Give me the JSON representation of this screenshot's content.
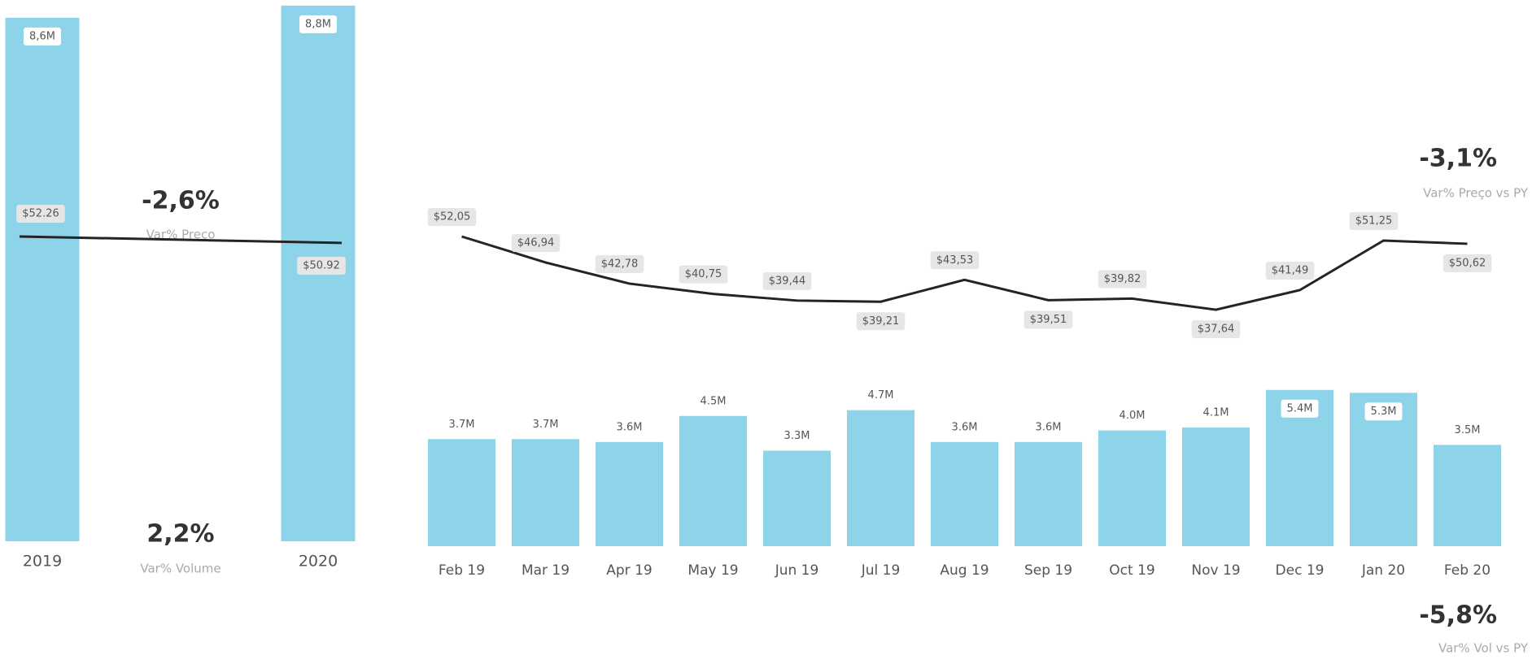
{
  "chart_data": [
    {
      "type": "combo",
      "categories": [
        "2019",
        "2020"
      ],
      "bars": {
        "color": "#8dd3ea",
        "values": [
          8.6,
          8.8
        ],
        "value_labels": [
          "8,6M",
          "8,8M"
        ]
      },
      "line": {
        "color": "#252423",
        "values": [
          52.26,
          50.92
        ],
        "value_labels": [
          "$52.26",
          "$50.92"
        ]
      },
      "annotations": [
        {
          "value": "-2,6%",
          "label": "Var% Preço"
        },
        {
          "value": "2,2%",
          "label": "Var% Volume"
        }
      ]
    },
    {
      "type": "combo",
      "categories": [
        "Feb 19",
        "Mar 19",
        "Apr 19",
        "May 19",
        "Jun 19",
        "Jul 19",
        "Aug 19",
        "Sep 19",
        "Oct 19",
        "Nov 19",
        "Dec 19",
        "Jan 20",
        "Feb 20"
      ],
      "bars": {
        "color": "#8dd3ea",
        "values": [
          3.7,
          3.7,
          3.6,
          4.5,
          3.3,
          4.7,
          3.6,
          3.6,
          4.0,
          4.1,
          5.4,
          5.3,
          3.5
        ],
        "value_labels": [
          "3.7M",
          "3.7M",
          "3.6M",
          "4.5M",
          "3.3M",
          "4.7M",
          "3.6M",
          "3.6M",
          "4.0M",
          "4.1M",
          "5.4M",
          "5.3M",
          "3.5M"
        ]
      },
      "line": {
        "color": "#252423",
        "values": [
          52.05,
          46.94,
          42.78,
          40.75,
          39.44,
          39.21,
          43.53,
          39.51,
          39.82,
          37.64,
          41.49,
          51.25,
          50.62
        ],
        "value_labels": [
          "$52,05",
          "$46,94",
          "$42,78",
          "$40,75",
          "$39,44",
          "$39,21",
          "$43,53",
          "$39,51",
          "$39,82",
          "$37,64",
          "$41,49",
          "$51,25",
          "$50,62"
        ]
      },
      "annotations": [
        {
          "value": "-3,1%",
          "label": "Var% Preço vs PY"
        },
        {
          "value": "-5,8%",
          "label": "Var% Vol vs PY"
        }
      ]
    }
  ]
}
